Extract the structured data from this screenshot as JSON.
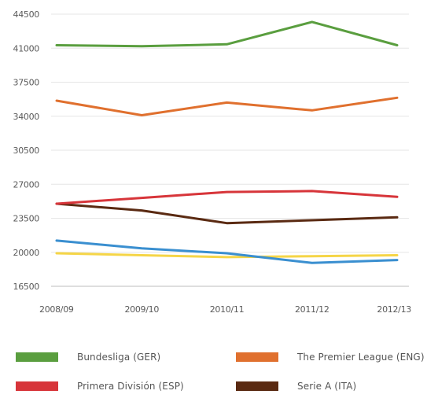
{
  "chart_data": {
    "type": "line",
    "categories": [
      "2008/09",
      "2009/10",
      "2010/11",
      "2011/12",
      "2012/13"
    ],
    "y_ticks": [
      "16500",
      "20000",
      "23500",
      "27000",
      "30500",
      "34000",
      "37500",
      "41000",
      "44500"
    ],
    "ylim": [
      16500,
      44500
    ],
    "grid": "horizontal",
    "legend_position": "bottom",
    "series": [
      {
        "name": "Bundesliga (GER)",
        "color": "#5a9e3f",
        "values": [
          41300,
          41200,
          41400,
          43700,
          41300
        ]
      },
      {
        "name": "The Premier League (ENG)",
        "color": "#e0702e",
        "values": [
          35600,
          34100,
          35400,
          34600,
          35900
        ]
      },
      {
        "name": "Primera División (ESP)",
        "color": "#d7353a",
        "values": [
          25000,
          25600,
          26200,
          26300,
          25700
        ]
      },
      {
        "name": "Serie A (ITA)",
        "color": "#5a2a12",
        "values": [
          25000,
          24300,
          23000,
          23300,
          23600
        ]
      },
      {
        "color": "#3a8fd0",
        "values": [
          21200,
          20400,
          19900,
          18900,
          19200
        ]
      },
      {
        "color": "#f5d547",
        "values": [
          19900,
          19700,
          19500,
          19600,
          19700
        ]
      }
    ],
    "legend": [
      {
        "label": "Bundesliga (GER)",
        "color": "#5a9e3f"
      },
      {
        "label": "The Premier League (ENG)",
        "color": "#e0702e"
      },
      {
        "label": "Primera División (ESP)",
        "color": "#d7353a"
      },
      {
        "label": "Serie A (ITA)",
        "color": "#5a2a12"
      }
    ]
  }
}
